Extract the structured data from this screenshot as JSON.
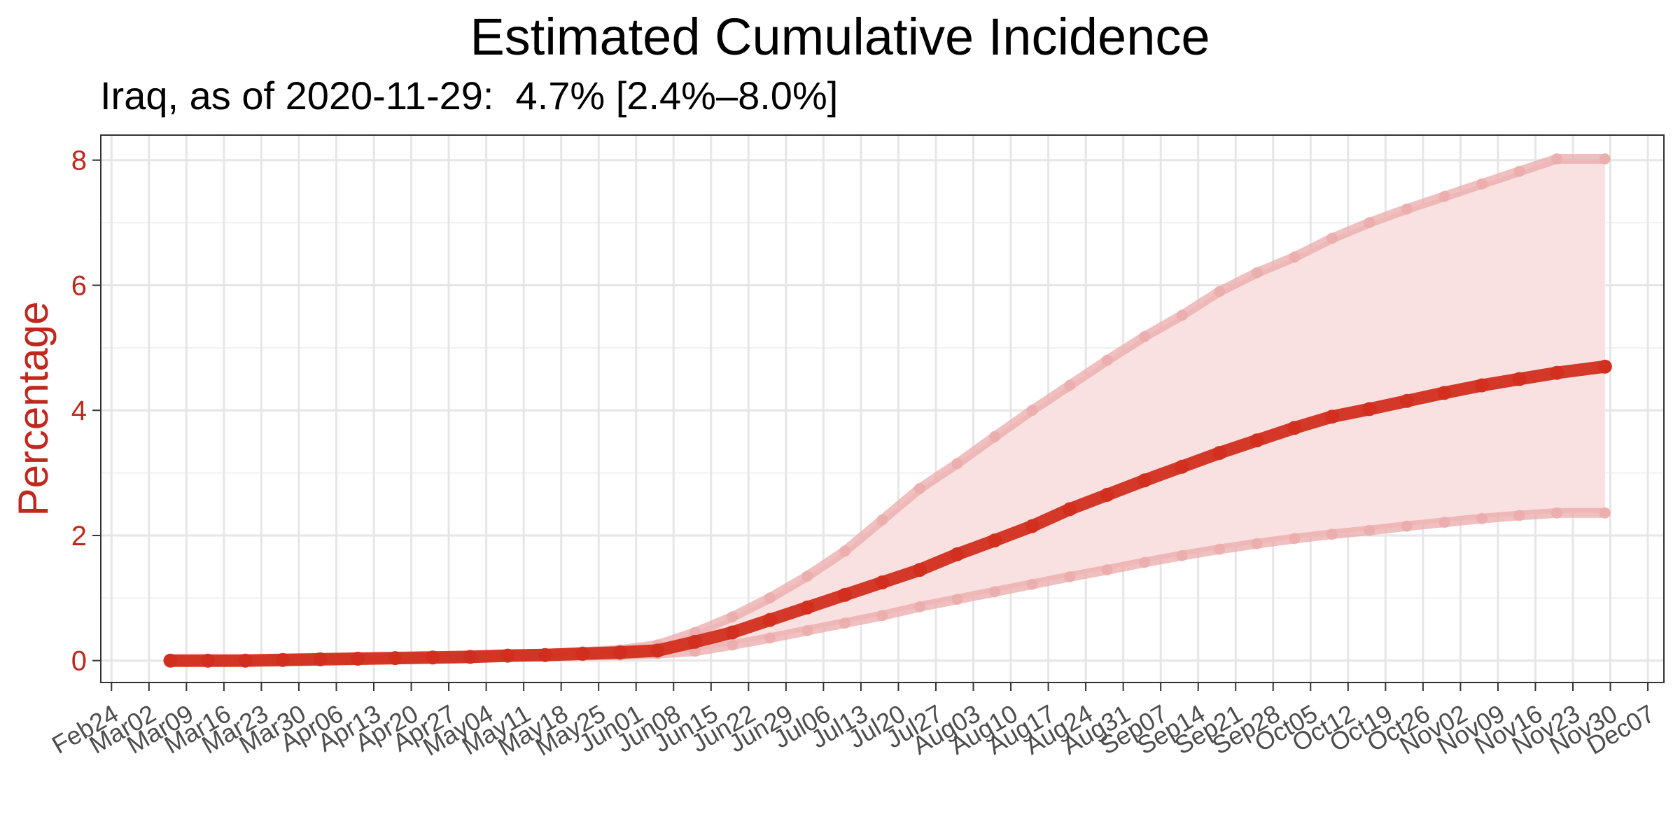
{
  "chart_data": {
    "type": "line",
    "title": "Estimated Cumulative Incidence",
    "subtitle": "Iraq, as of 2020-11-29:  4.7% [2.4%–8.0%]",
    "xlabel": "",
    "ylabel": "Percentage",
    "ylim": [
      -0.35,
      8.4
    ],
    "xlim": [
      "2020-02-22",
      "2020-12-10"
    ],
    "x_ticks": [
      "2020-02-24",
      "2020-03-02",
      "2020-03-09",
      "2020-03-16",
      "2020-03-23",
      "2020-03-30",
      "2020-04-06",
      "2020-04-13",
      "2020-04-20",
      "2020-04-27",
      "2020-05-04",
      "2020-05-11",
      "2020-05-18",
      "2020-05-25",
      "2020-06-01",
      "2020-06-08",
      "2020-06-15",
      "2020-06-22",
      "2020-06-29",
      "2020-07-06",
      "2020-07-13",
      "2020-07-20",
      "2020-07-27",
      "2020-08-03",
      "2020-08-10",
      "2020-08-17",
      "2020-08-24",
      "2020-08-31",
      "2020-09-07",
      "2020-09-14",
      "2020-09-21",
      "2020-09-28",
      "2020-10-05",
      "2020-10-12",
      "2020-10-19",
      "2020-10-26",
      "2020-11-02",
      "2020-11-09",
      "2020-11-16",
      "2020-11-23",
      "2020-11-30",
      "2020-12-07"
    ],
    "x_tick_labels": [
      "Feb24",
      "Mar02",
      "Mar09",
      "Mar16",
      "Mar23",
      "Mar30",
      "Apr06",
      "Apr13",
      "Apr20",
      "Apr27",
      "May04",
      "May11",
      "May18",
      "May25",
      "Jun01",
      "Jun08",
      "Jun15",
      "Jun22",
      "Jun29",
      "Jul06",
      "Jul13",
      "Jul20",
      "Jul27",
      "Aug03",
      "Aug10",
      "Aug17",
      "Aug24",
      "Aug31",
      "Sep07",
      "Sep14",
      "Sep21",
      "Sep28",
      "Oct05",
      "Oct12",
      "Oct19",
      "Oct26",
      "Nov02",
      "Nov09",
      "Nov16",
      "Nov23",
      "Nov30",
      "Dec07"
    ],
    "y_ticks": [
      0,
      2,
      4,
      6,
      8
    ],
    "grid": true,
    "colors": {
      "line": "#D22E1E",
      "band": "#F9E1E2",
      "bound": "#EBA9A9",
      "axis_text": "#C0271D"
    },
    "x": [
      "2020-03-06",
      "2020-03-13",
      "2020-03-20",
      "2020-03-27",
      "2020-04-03",
      "2020-04-10",
      "2020-04-17",
      "2020-04-24",
      "2020-05-01",
      "2020-05-08",
      "2020-05-15",
      "2020-05-22",
      "2020-05-29",
      "2020-06-05",
      "2020-06-12",
      "2020-06-19",
      "2020-06-26",
      "2020-07-03",
      "2020-07-10",
      "2020-07-17",
      "2020-07-24",
      "2020-07-31",
      "2020-08-07",
      "2020-08-14",
      "2020-08-21",
      "2020-08-28",
      "2020-09-04",
      "2020-09-11",
      "2020-09-18",
      "2020-09-25",
      "2020-10-02",
      "2020-10-09",
      "2020-10-16",
      "2020-10-23",
      "2020-10-30",
      "2020-11-06",
      "2020-11-13",
      "2020-11-20",
      "2020-11-29"
    ],
    "series": [
      {
        "name": "",
        "values": [
          0.0,
          0.0,
          0.0,
          0.01,
          0.02,
          0.03,
          0.04,
          0.05,
          0.06,
          0.08,
          0.09,
          0.11,
          0.13,
          0.16,
          0.3,
          0.45,
          0.65,
          0.85,
          1.05,
          1.25,
          1.45,
          1.7,
          1.92,
          2.15,
          2.42,
          2.65,
          2.88,
          3.1,
          3.32,
          3.52,
          3.72,
          3.9,
          4.02,
          4.15,
          4.28,
          4.4,
          4.5,
          4.6,
          4.7
        ]
      },
      {
        "name": "",
        "values": [
          0.0,
          0.0,
          0.0,
          0.01,
          0.02,
          0.03,
          0.04,
          0.05,
          0.06,
          0.09,
          0.11,
          0.14,
          0.17,
          0.25,
          0.45,
          0.7,
          1.0,
          1.35,
          1.75,
          2.25,
          2.75,
          3.15,
          3.58,
          4.0,
          4.4,
          4.8,
          5.18,
          5.52,
          5.9,
          6.2,
          6.45,
          6.75,
          7.0,
          7.22,
          7.42,
          7.62,
          7.82,
          8.02,
          8.02
        ]
      },
      {
        "name": "",
        "values": [
          0.0,
          0.0,
          0.0,
          0.01,
          0.01,
          0.02,
          0.03,
          0.04,
          0.05,
          0.06,
          0.07,
          0.08,
          0.09,
          0.11,
          0.15,
          0.25,
          0.36,
          0.48,
          0.6,
          0.72,
          0.86,
          0.98,
          1.1,
          1.22,
          1.34,
          1.45,
          1.57,
          1.68,
          1.78,
          1.87,
          1.95,
          2.02,
          2.08,
          2.15,
          2.21,
          2.27,
          2.32,
          2.36,
          2.36
        ]
      }
    ]
  }
}
